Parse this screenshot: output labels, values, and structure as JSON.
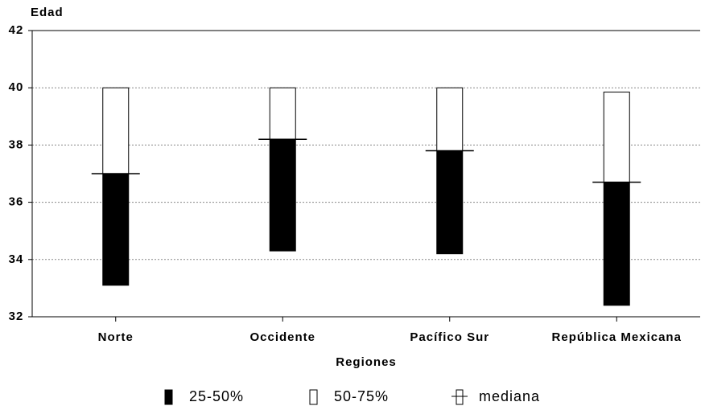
{
  "chart_data": {
    "type": "box",
    "y_label": "Edad",
    "x_label": "Regiones",
    "categories": [
      "Norte",
      "Occidente",
      "Pacífico Sur",
      "República Mexicana"
    ],
    "series": [
      {
        "name": "25-50%",
        "color": "#000000",
        "values": [
          33.1,
          34.3,
          34.2,
          32.4
        ]
      },
      {
        "name": "50-75%",
        "color": "#ffffff",
        "values": [
          40,
          40,
          40,
          39.85
        ]
      },
      {
        "name": "mediana",
        "color": "#000000",
        "values": [
          37.0,
          38.2,
          37.8,
          36.7
        ]
      }
    ],
    "ylim": [
      32,
      42
    ],
    "yticks": [
      32,
      34,
      36,
      38,
      40,
      42
    ],
    "grid": true
  }
}
